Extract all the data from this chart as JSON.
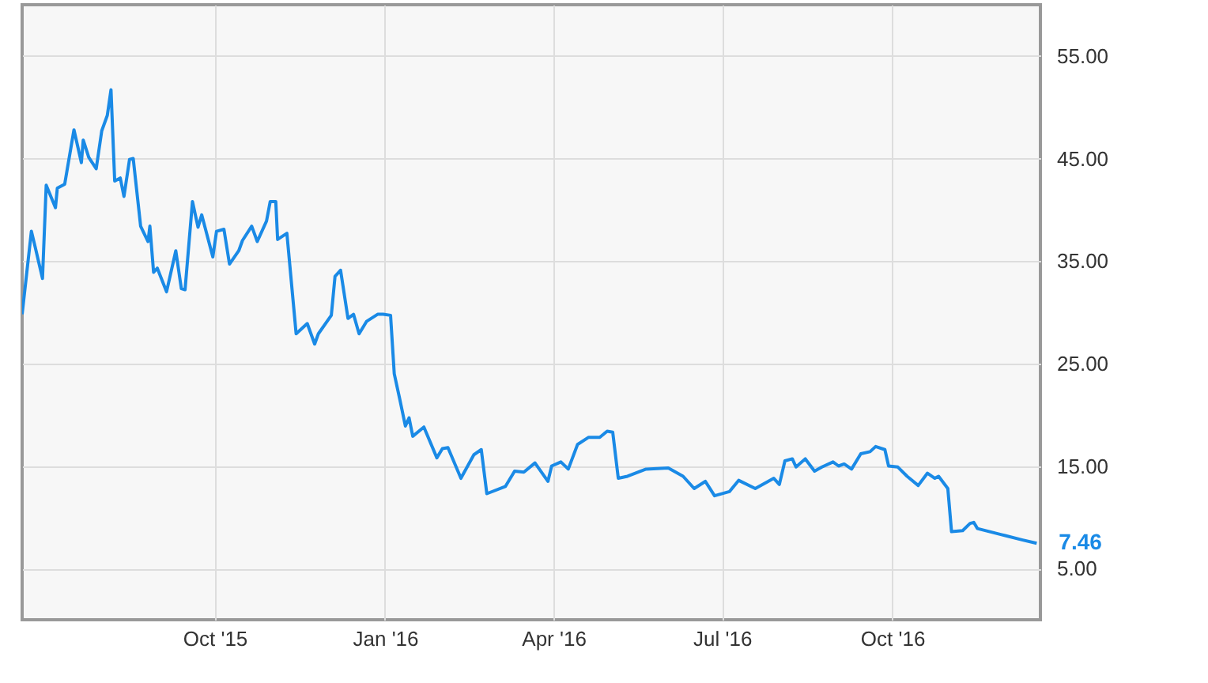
{
  "chart_data": {
    "type": "line",
    "x": [
      "2015-06-19",
      "2015-06-24",
      "2015-06-26",
      "2015-06-30",
      "2015-07-02",
      "2015-07-07",
      "2015-07-08",
      "2015-07-12",
      "2015-07-17",
      "2015-07-21",
      "2015-07-22",
      "2015-07-25",
      "2015-07-29",
      "2015-08-01",
      "2015-08-04",
      "2015-08-06",
      "2015-08-08",
      "2015-08-11",
      "2015-08-13",
      "2015-08-16",
      "2015-08-18",
      "2015-08-22",
      "2015-08-26",
      "2015-08-27",
      "2015-08-29",
      "2015-08-31",
      "2015-09-05",
      "2015-09-10",
      "2015-09-13",
      "2015-09-15",
      "2015-09-19",
      "2015-09-22",
      "2015-09-24",
      "2015-09-30",
      "2015-10-02",
      "2015-10-06",
      "2015-10-09",
      "2015-10-14",
      "2015-10-16",
      "2015-10-21",
      "2015-10-24",
      "2015-10-29",
      "2015-10-31",
      "2015-11-03",
      "2015-11-04",
      "2015-11-09",
      "2015-11-14",
      "2015-11-20",
      "2015-11-24",
      "2015-11-26",
      "2015-12-03",
      "2015-12-05",
      "2015-12-08",
      "2015-12-12",
      "2015-12-15",
      "2015-12-18",
      "2015-12-22",
      "2015-12-28",
      "2015-12-31",
      "2016-01-04",
      "2016-01-06",
      "2016-01-09",
      "2016-01-12",
      "2016-01-14",
      "2016-01-16",
      "2016-01-22",
      "2016-01-29",
      "2016-02-01",
      "2016-02-04",
      "2016-02-11",
      "2016-02-18",
      "2016-02-22",
      "2016-02-25",
      "2016-03-06",
      "2016-03-11",
      "2016-03-16",
      "2016-03-22",
      "2016-03-29",
      "2016-03-31",
      "2016-04-05",
      "2016-04-09",
      "2016-04-14",
      "2016-04-20",
      "2016-04-26",
      "2016-04-30",
      "2016-05-03",
      "2016-05-06",
      "2016-05-11",
      "2016-05-21",
      "2016-06-02",
      "2016-06-10",
      "2016-06-16",
      "2016-06-22",
      "2016-06-27",
      "2016-07-05",
      "2016-07-10",
      "2016-07-19",
      "2016-07-29",
      "2016-08-01",
      "2016-08-04",
      "2016-08-08",
      "2016-08-10",
      "2016-08-15",
      "2016-08-20",
      "2016-08-24",
      "2016-08-30",
      "2016-09-02",
      "2016-09-05",
      "2016-09-09",
      "2016-09-14",
      "2016-09-19",
      "2016-09-22",
      "2016-09-27",
      "2016-09-29",
      "2016-10-04",
      "2016-10-09",
      "2016-10-15",
      "2016-10-20",
      "2016-10-24",
      "2016-10-26",
      "2016-10-31",
      "2016-11-02",
      "2016-11-08",
      "2016-11-12",
      "2016-11-14",
      "2016-11-16",
      "2016-11-29",
      "2016-12-10",
      "2016-12-18"
    ],
    "series": [
      {
        "color": "#1a8ae6",
        "values": [
          29.8,
          37.9,
          36.4,
          33.3,
          42.4,
          40.2,
          42.1,
          42.5,
          47.8,
          44.6,
          46.8,
          45.1,
          44.0,
          47.7,
          49.2,
          51.7,
          42.8,
          43.1,
          41.3,
          44.9,
          45.0,
          38.4,
          36.9,
          38.4,
          33.9,
          34.3,
          32.0,
          36.0,
          32.3,
          32.2,
          40.8,
          38.3,
          39.5,
          35.4,
          37.9,
          38.1,
          34.7,
          36.0,
          37.0,
          38.4,
          36.9,
          38.9,
          40.8,
          40.8,
          37.1,
          37.7,
          27.9,
          28.9,
          26.9,
          27.9,
          29.7,
          33.5,
          34.1,
          29.4,
          29.8,
          27.9,
          29.1,
          29.8,
          29.8,
          29.7,
          24.0,
          21.5,
          18.9,
          19.7,
          17.9,
          18.8,
          15.8,
          16.7,
          16.8,
          13.8,
          16.1,
          16.6,
          12.3,
          13.0,
          14.5,
          14.4,
          15.3,
          13.5,
          15.0,
          15.4,
          14.7,
          17.1,
          17.8,
          17.8,
          18.4,
          18.3,
          13.8,
          14.0,
          14.7,
          14.8,
          14.0,
          12.8,
          13.5,
          12.1,
          12.5,
          13.6,
          12.8,
          13.8,
          13.2,
          15.5,
          15.7,
          14.9,
          15.7,
          14.5,
          14.9,
          15.4,
          15.0,
          15.2,
          14.7,
          16.2,
          16.4,
          16.9,
          16.6,
          15.0,
          14.9,
          14.0,
          13.1,
          14.3,
          13.8,
          14.0,
          12.8,
          8.6,
          8.7,
          9.4,
          9.5,
          8.9,
          8.3,
          7.8,
          7.46
        ]
      }
    ],
    "xlim": [
      "2015-06-19",
      "2016-12-20"
    ],
    "xticks": [
      {
        "value": "2015-10-01",
        "label": "Oct '15"
      },
      {
        "value": "2016-01-01",
        "label": "Jan '16"
      },
      {
        "value": "2016-04-01",
        "label": "Apr '16"
      },
      {
        "value": "2016-07-01",
        "label": "Jul '16"
      },
      {
        "value": "2016-10-01",
        "label": "Oct '16"
      }
    ],
    "ylim": [
      0,
      60
    ],
    "yticks": [
      {
        "value": 5,
        "label": "5.00"
      },
      {
        "value": 15,
        "label": "15.00"
      },
      {
        "value": 25,
        "label": "25.00"
      },
      {
        "value": 35,
        "label": "35.00"
      },
      {
        "value": 45,
        "label": "45.00"
      },
      {
        "value": 55,
        "label": "55.00"
      }
    ],
    "annotations": [
      {
        "text": "7.46",
        "x": "2016-12-18",
        "y": 7.46
      }
    ],
    "grid": true
  }
}
